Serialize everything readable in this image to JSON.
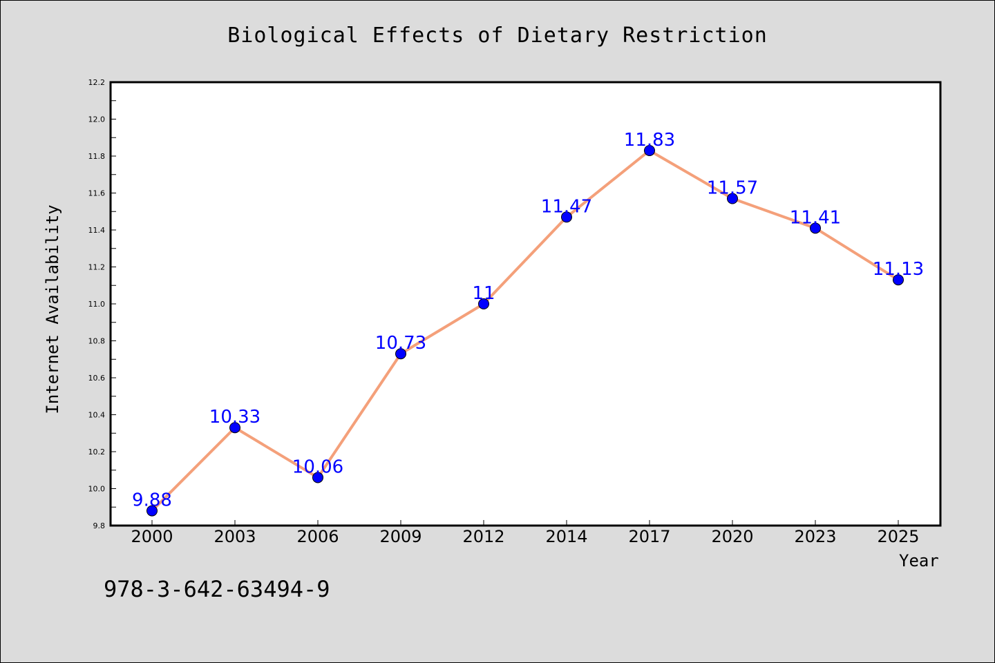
{
  "chart_data": {
    "type": "line",
    "title": "Biological Effects of Dietary Restriction",
    "xlabel": "Year",
    "ylabel": "Internet Availability",
    "categories": [
      "2000",
      "2003",
      "2006",
      "2009",
      "2012",
      "2014",
      "2017",
      "2020",
      "2023",
      "2025"
    ],
    "series": [
      {
        "values": [
          9.88,
          10.33,
          10.06,
          10.73,
          11,
          11.47,
          11.83,
          11.57,
          11.41,
          11.13
        ],
        "labels": [
          "9.88",
          "10.33",
          "10.06",
          "10.73",
          "11",
          "11.47",
          "11.83",
          "11.57",
          "11.41",
          "11.13"
        ],
        "line_color": "#f4a07a",
        "marker_color": "#0000ff"
      }
    ],
    "ylim": [
      9.8,
      12.2
    ],
    "yticks": [
      "9.8",
      "10.0",
      "10.2",
      "10.4",
      "10.6",
      "10.8",
      "11.0",
      "11.2",
      "11.4",
      "11.6",
      "11.8",
      "12.0",
      "12.2"
    ],
    "grid": false,
    "legend": "none"
  },
  "footnote": "978-3-642-63494-9",
  "colors": {
    "background": "#dcdcdc",
    "plot_background": "#ffffff",
    "label_color": "#0000ff"
  }
}
